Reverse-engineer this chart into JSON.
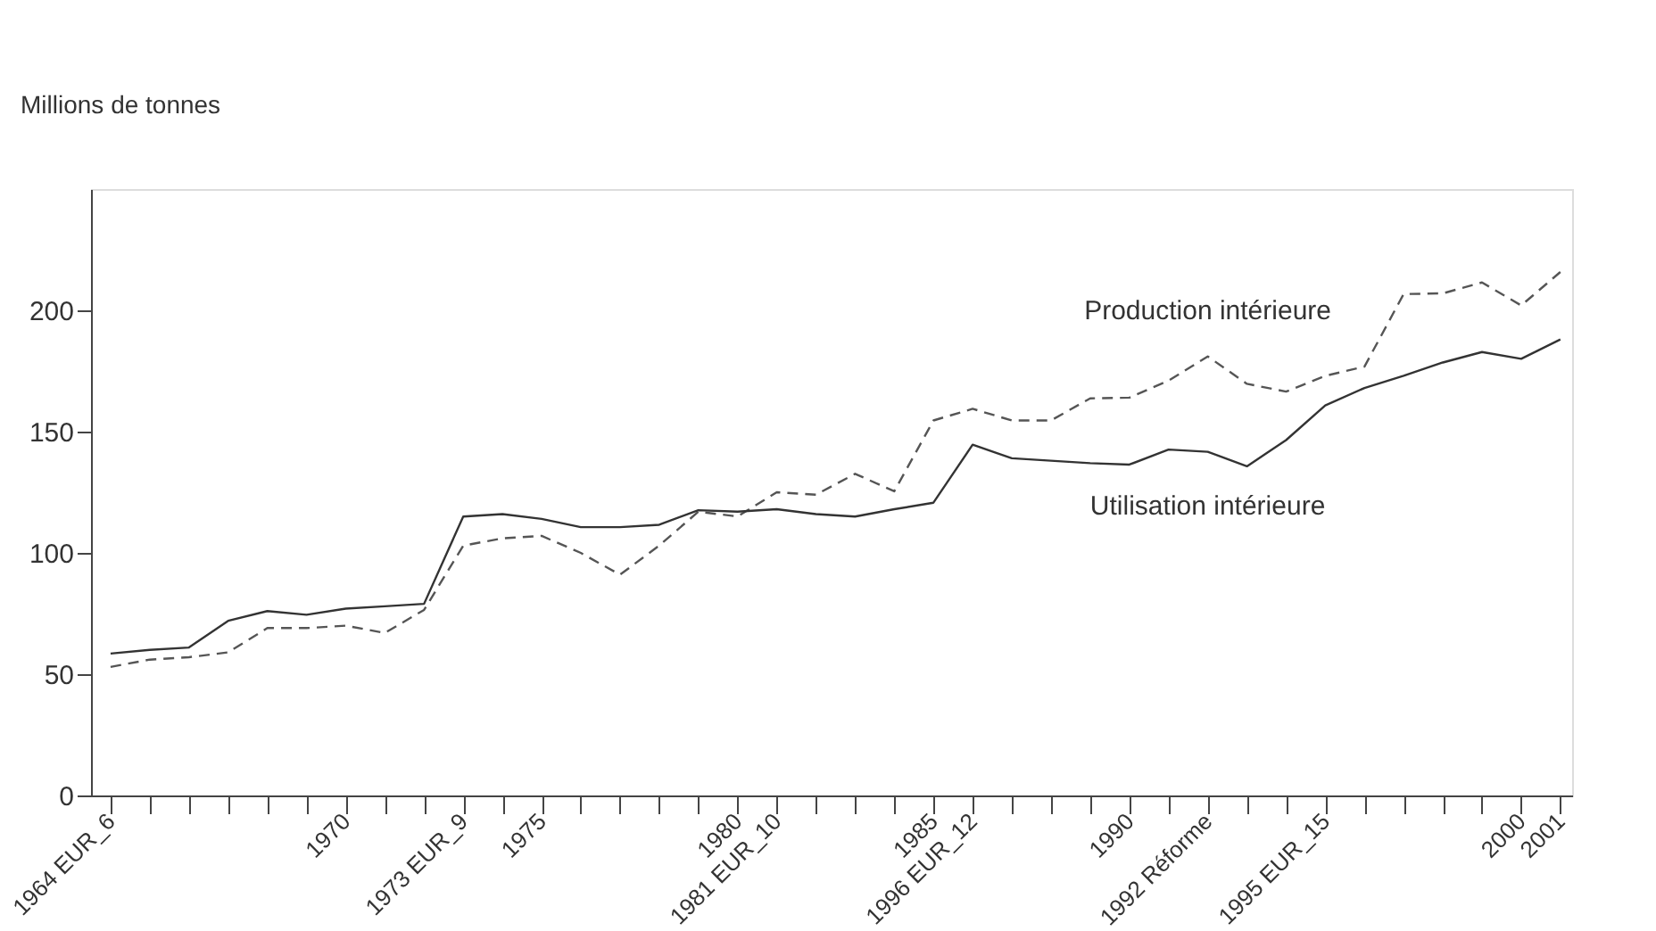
{
  "chart_data": {
    "type": "line",
    "ylabel": "Millions de tonnes",
    "x": [
      1964,
      1965,
      1966,
      1967,
      1968,
      1969,
      1970,
      1971,
      1972,
      1973,
      1974,
      1975,
      1976,
      1977,
      1978,
      1979,
      1980,
      1981,
      1982,
      1983,
      1984,
      1985,
      1986,
      1987,
      1988,
      1989,
      1990,
      1991,
      1992,
      1993,
      1994,
      1995,
      1996,
      1997,
      1998,
      1999,
      2000,
      2001
    ],
    "series": [
      {
        "name": "Production intérieure",
        "color": "#555555",
        "line_style": "dashed",
        "values": [
          53,
          56,
          57,
          59,
          69,
          69,
          70,
          67,
          76.5,
          103,
          106,
          107,
          100,
          91,
          103,
          117,
          115,
          125,
          124,
          132.6,
          125.4,
          154.6,
          159.4,
          154.6,
          154.6,
          163.7,
          164,
          171,
          181,
          169.7,
          166.5,
          173,
          176.8,
          206.7,
          207,
          211.5,
          202,
          215.8
        ]
      },
      {
        "name": "Utilisation intérieure",
        "color": "#333333",
        "line_style": "solid",
        "values": [
          58.5,
          60,
          61,
          72,
          76,
          74.5,
          77,
          78,
          79,
          115,
          116,
          114,
          110.6,
          110.6,
          111.6,
          117.6,
          117,
          118,
          116,
          115,
          118,
          120.7,
          144.6,
          139,
          138,
          137,
          136.4,
          142.6,
          141.7,
          135.7,
          146.5,
          160.8,
          168,
          173,
          178.5,
          182.8,
          180,
          188
        ]
      }
    ],
    "xlim": [
      1963.5,
      2001.3
    ],
    "xticks": [
      {
        "value": 1964,
        "label": "1964 EUR_6"
      },
      {
        "value": 1965,
        "label": null
      },
      {
        "value": 1966,
        "label": null
      },
      {
        "value": 1967,
        "label": null
      },
      {
        "value": 1968,
        "label": null
      },
      {
        "value": 1969,
        "label": null
      },
      {
        "value": 1970,
        "label": "1970"
      },
      {
        "value": 1971,
        "label": null
      },
      {
        "value": 1972,
        "label": null
      },
      {
        "value": 1973,
        "label": "1973 EUR_9"
      },
      {
        "value": 1974,
        "label": null
      },
      {
        "value": 1975,
        "label": "1975"
      },
      {
        "value": 1976,
        "label": null
      },
      {
        "value": 1977,
        "label": null
      },
      {
        "value": 1978,
        "label": null
      },
      {
        "value": 1979,
        "label": null
      },
      {
        "value": 1980,
        "label": "1980"
      },
      {
        "value": 1981,
        "label": "1981 EUR_10"
      },
      {
        "value": 1982,
        "label": null
      },
      {
        "value": 1983,
        "label": null
      },
      {
        "value": 1984,
        "label": null
      },
      {
        "value": 1985,
        "label": "1985"
      },
      {
        "value": 1986,
        "label": "1996 EUR_12"
      },
      {
        "value": 1987,
        "label": null
      },
      {
        "value": 1988,
        "label": null
      },
      {
        "value": 1989,
        "label": null
      },
      {
        "value": 1990,
        "label": "1990"
      },
      {
        "value": 1991,
        "label": null
      },
      {
        "value": 1992,
        "label": "1992 Réforme"
      },
      {
        "value": 1993,
        "label": null
      },
      {
        "value": 1994,
        "label": null
      },
      {
        "value": 1995,
        "label": "1995 EUR_15"
      },
      {
        "value": 1996,
        "label": null
      },
      {
        "value": 1997,
        "label": null
      },
      {
        "value": 1998,
        "label": null
      },
      {
        "value": 1999,
        "label": null
      },
      {
        "value": 2000,
        "label": "2000"
      },
      {
        "value": 2001,
        "label": "2001"
      }
    ],
    "ylim": [
      0,
      250
    ],
    "yticks": [
      0,
      50,
      100,
      150,
      200
    ],
    "grid": false,
    "marker": "none"
  }
}
